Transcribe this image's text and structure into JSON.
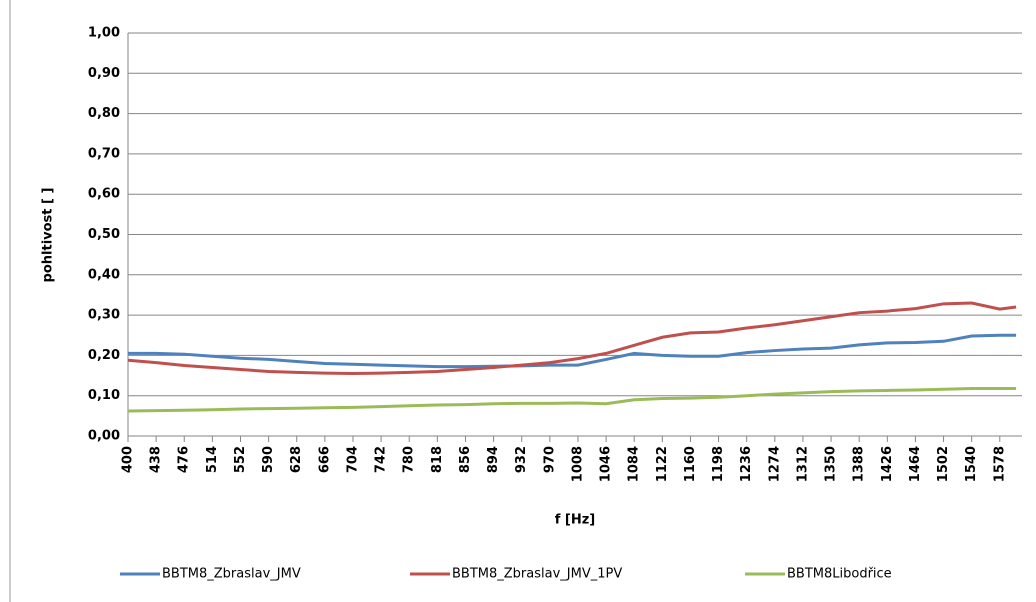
{
  "chart_data": {
    "type": "line",
    "x_label": "f [Hz]",
    "y_label": "pohltivost [ ]",
    "x": [
      400,
      438,
      476,
      514,
      552,
      590,
      628,
      666,
      704,
      742,
      780,
      818,
      856,
      894,
      932,
      970,
      1008,
      1046,
      1084,
      1122,
      1160,
      1198,
      1236,
      1274,
      1312,
      1350,
      1388,
      1426,
      1464,
      1502,
      1540,
      1578,
      1600
    ],
    "series": [
      {
        "name": "BBTM8_Zbraslav_JMV",
        "color": "#4f81bd",
        "values": [
          0.205,
          0.205,
          0.203,
          0.198,
          0.193,
          0.19,
          0.185,
          0.18,
          0.178,
          0.176,
          0.174,
          0.172,
          0.172,
          0.173,
          0.174,
          0.176,
          0.176,
          0.19,
          0.205,
          0.2,
          0.198,
          0.198,
          0.207,
          0.212,
          0.216,
          0.218,
          0.226,
          0.231,
          0.232,
          0.235,
          0.248,
          0.25,
          0.25
        ]
      },
      {
        "name": "BBTM8_Zbraslav_JMV_1PV",
        "color": "#c0504d",
        "values": [
          0.188,
          0.182,
          0.175,
          0.17,
          0.165,
          0.16,
          0.158,
          0.156,
          0.155,
          0.156,
          0.158,
          0.16,
          0.165,
          0.17,
          0.176,
          0.182,
          0.192,
          0.205,
          0.225,
          0.245,
          0.256,
          0.258,
          0.268,
          0.276,
          0.286,
          0.296,
          0.306,
          0.31,
          0.316,
          0.328,
          0.33,
          0.315,
          0.32
        ]
      },
      {
        "name": "BBTM8Libodřice",
        "color": "#9bbb59",
        "values": [
          0.062,
          0.063,
          0.064,
          0.065,
          0.067,
          0.068,
          0.069,
          0.07,
          0.071,
          0.073,
          0.075,
          0.077,
          0.078,
          0.08,
          0.081,
          0.081,
          0.082,
          0.08,
          0.09,
          0.093,
          0.094,
          0.096,
          0.1,
          0.104,
          0.107,
          0.11,
          0.112,
          0.113,
          0.114,
          0.116,
          0.118,
          0.118,
          0.118
        ]
      }
    ],
    "xlim": [
      400,
      1608
    ],
    "xticks": [
      400,
      438,
      476,
      514,
      552,
      590,
      628,
      666,
      704,
      742,
      780,
      818,
      856,
      894,
      932,
      970,
      1008,
      1046,
      1084,
      1122,
      1160,
      1198,
      1236,
      1274,
      1312,
      1350,
      1388,
      1426,
      1464,
      1502,
      1540,
      1578
    ],
    "ylim": [
      0,
      1
    ],
    "yticks": [
      {
        "value": 0,
        "label": "0,00"
      },
      {
        "value": 0.1,
        "label": "0,10"
      },
      {
        "value": 0.2,
        "label": "0,20"
      },
      {
        "value": 0.3,
        "label": "0,30"
      },
      {
        "value": 0.4,
        "label": "0,40"
      },
      {
        "value": 0.5,
        "label": "0,50"
      },
      {
        "value": 0.6,
        "label": "0,60"
      },
      {
        "value": 0.7,
        "label": "0,70"
      },
      {
        "value": 0.8,
        "label": "0,80"
      },
      {
        "value": 0.9,
        "label": "0,90"
      },
      {
        "value": 1,
        "label": "1,00"
      }
    ],
    "grid": true,
    "legend": "bottom"
  }
}
